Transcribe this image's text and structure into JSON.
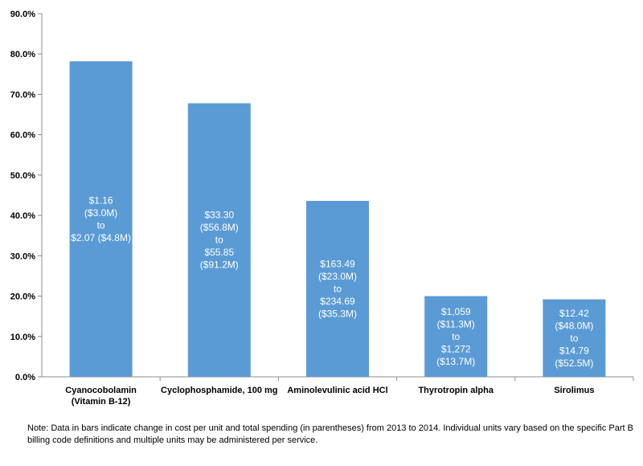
{
  "chart_data": {
    "type": "bar",
    "categories": [
      [
        "Cyanocobolamin",
        "(Vitamin B-12)"
      ],
      [
        "Cyclophosphamide, 100 mg"
      ],
      [
        "Aminolevulinic acid HCl"
      ],
      [
        "Thyrotropin alpha"
      ],
      [
        "Sirolimus"
      ]
    ],
    "values": [
      78.2,
      67.8,
      43.6,
      20.0,
      19.2
    ],
    "bar_labels": [
      [
        "$1.16",
        "($3.0M)",
        "to",
        "$2.07 ($4.8M)"
      ],
      [
        "$33.30",
        "($56.8M)",
        "to",
        "$55.85",
        "($91.2M)"
      ],
      [
        "$163.49",
        "($23.0M)",
        "to",
        "$234.69",
        "($35.3M)"
      ],
      [
        "$1,059",
        "($11.3M)",
        "to",
        "$1,272",
        "($13.7M)"
      ],
      [
        "$12.42",
        "($48.0M)",
        "to",
        "$14.79",
        "($52.5M)"
      ]
    ],
    "y_ticks": [
      "0.0%",
      "10.0%",
      "20.0%",
      "30.0%",
      "40.0%",
      "50.0%",
      "60.0%",
      "70.0%",
      "80.0%",
      "90.0%"
    ],
    "ylim": [
      0,
      90
    ],
    "grid": false,
    "bar_color": "#5b9bd5",
    "title": "",
    "xlabel": "",
    "ylabel": ""
  },
  "note": "Note: Data in bars indicate change in cost per unit and total spending (in parentheses) from 2013 to 2014. Individual units vary based on the specific Part B billing code definitions and multiple units may be administered per service."
}
